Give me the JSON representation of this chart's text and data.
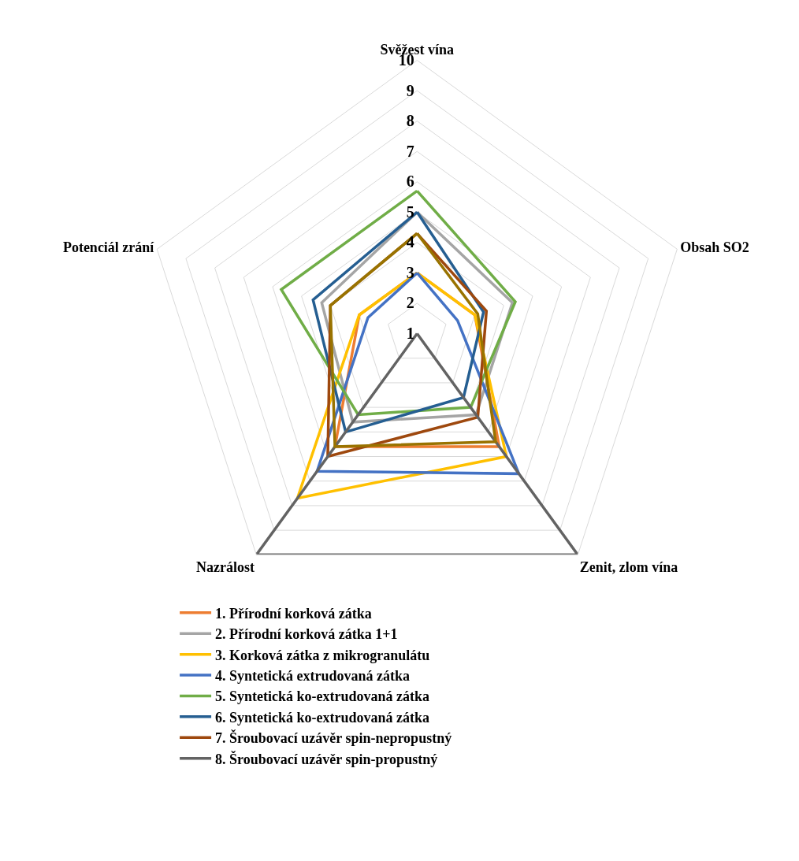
{
  "chart_data": {
    "type": "radar",
    "categories": [
      "Svěžest vína",
      "Obsah SO2",
      "Zenit, zlom vína",
      "Nazrálost",
      "Potenciál zrání"
    ],
    "series": [
      {
        "name": "1. Přírodní korková zátka",
        "color": "#ed7d31",
        "values": [
          3.0,
          3.0,
          5.6,
          5.6,
          3.0
        ]
      },
      {
        "name": "2. Přírodní korková zátka 1+1",
        "color": "#a5a5a5",
        "values": [
          5.0,
          4.3,
          4.3,
          4.6,
          4.3
        ]
      },
      {
        "name": "3. Korková zátka z mikrogranulátu",
        "color": "#ffc000",
        "values": [
          3.0,
          3.0,
          6.0,
          7.7,
          3.0
        ]
      },
      {
        "name": "4. Syntetická extrudovaná zátka",
        "color": "#4472c4",
        "values": [
          3.0,
          2.4,
          6.7,
          6.6,
          2.7
        ]
      },
      {
        "name": "5. Syntetická ko-extrudovaná zátka",
        "color": "#70ad47",
        "values": [
          5.7,
          4.4,
          4.0,
          4.3,
          5.7
        ]
      },
      {
        "name": "6. Syntetická ko-extrudovaná zátka",
        "color": "#255e91",
        "values": [
          5.0,
          3.3,
          3.6,
          5.0,
          4.6
        ]
      },
      {
        "name": "7. Šroubovací uzávěr spin-nepropustný",
        "color": "#9e480e",
        "values": [
          4.3,
          3.4,
          4.4,
          6.0,
          4.0
        ]
      },
      {
        "name": "8. Šroubovací uzávěr spin-propustný",
        "color": "#636363",
        "values": [
          1.0,
          1.0,
          10.0,
          10.0,
          1.0
        ]
      },
      {
        "color": "#997300",
        "values": [
          4.3,
          3.1,
          5.4,
          5.6,
          4.0
        ]
      }
    ],
    "ylim": [
      1,
      10
    ],
    "yticks": [
      1,
      2,
      3,
      4,
      5,
      6,
      7,
      8,
      9,
      10
    ],
    "grid": true,
    "legend": "bottom"
  }
}
